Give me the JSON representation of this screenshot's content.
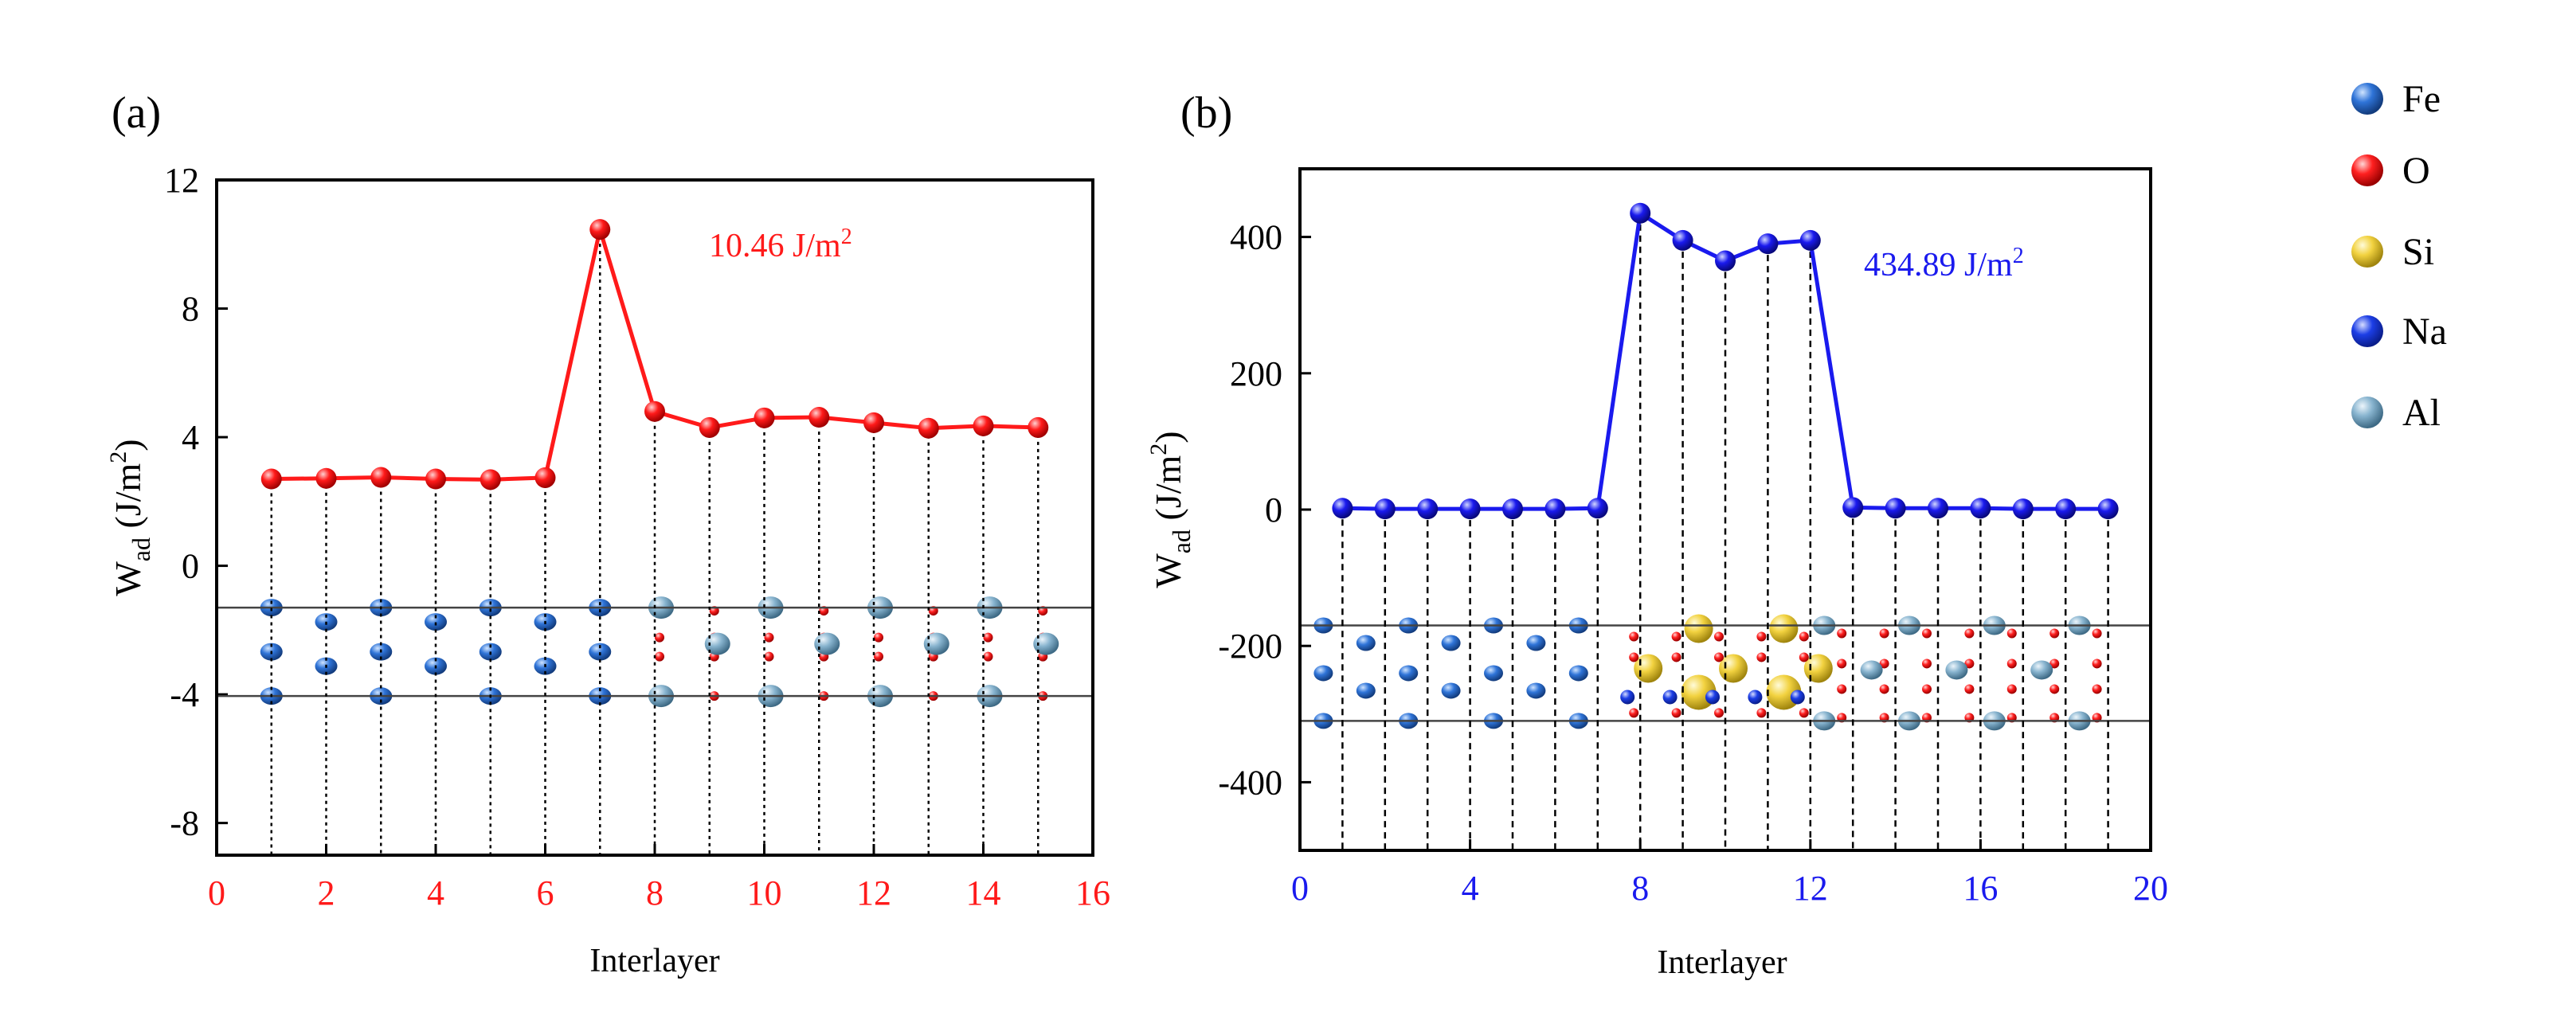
{
  "figure": {
    "legend": {
      "items": [
        {
          "label": "Fe",
          "color": "#1f5fd0"
        },
        {
          "label": "O",
          "color": "#ff1a1a"
        },
        {
          "label": "Si",
          "color": "#f0d23a"
        },
        {
          "label": "Na",
          "color": "#1238e0"
        },
        {
          "label": "Al",
          "color": "#78a8c8"
        }
      ]
    }
  },
  "chart_data": [
    {
      "panel": "(a)",
      "type": "line",
      "xlabel": "Interlayer",
      "ylabel": "W",
      "ylabel_sub": "ad",
      "ylabel_unit": " (J/m",
      "ylabel_sup": "2",
      "ylabel_close": ")",
      "xlim": [
        0,
        16
      ],
      "ylim": [
        -9,
        12
      ],
      "xticks": [
        0,
        2,
        4,
        6,
        8,
        10,
        12,
        14,
        16
      ],
      "yticks": [
        12,
        8,
        4,
        0,
        -4,
        -8
      ],
      "x": [
        1,
        2,
        3,
        4,
        5,
        6,
        7,
        8,
        9,
        10,
        11,
        12,
        13,
        14,
        15
      ],
      "values": [
        2.7,
        2.72,
        2.75,
        2.7,
        2.68,
        2.74,
        10.46,
        4.8,
        4.3,
        4.6,
        4.62,
        4.45,
        4.28,
        4.35,
        4.3
      ],
      "annotation": "10.46 J/m",
      "annotation_sup": "2",
      "color": "#ff1a1a",
      "tick_color": "#ff1a1a",
      "interface_lines": [
        -1.3,
        -4.05
      ]
    },
    {
      "panel": "(b)",
      "type": "line",
      "xlabel": "Interlayer",
      "ylabel": "W",
      "ylabel_sub": "ad",
      "ylabel_unit": " (J/m",
      "ylabel_sup": "2",
      "ylabel_close": ")",
      "xlim": [
        0,
        20
      ],
      "ylim": [
        -500,
        500
      ],
      "xticks": [
        0,
        4,
        8,
        12,
        16,
        20
      ],
      "yticks": [
        400,
        200,
        0,
        -200,
        -400
      ],
      "x": [
        1,
        2,
        3,
        4,
        5,
        6,
        7,
        8,
        9,
        10,
        11,
        12,
        13,
        14,
        15,
        16,
        17,
        18,
        19
      ],
      "values": [
        2,
        1,
        1,
        1,
        1,
        1,
        2,
        434.89,
        395,
        365,
        390,
        395,
        3,
        2,
        2,
        2,
        1,
        1,
        1
      ],
      "annotation": "434.89 J/m",
      "annotation_sup": "2",
      "color": "#1a1aee",
      "tick_color": "#1a1aee",
      "interface_lines": [
        -170,
        -310
      ]
    }
  ]
}
